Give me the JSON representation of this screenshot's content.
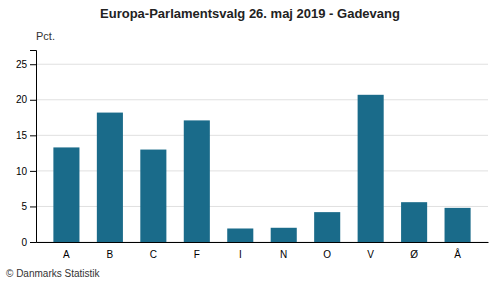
{
  "chart_data": {
    "type": "bar",
    "title": "Europa-Parlamentsvalg 26. maj 2019 - Gadevang",
    "categories": [
      "A",
      "B",
      "C",
      "F",
      "I",
      "N",
      "O",
      "V",
      "Ø",
      "Å"
    ],
    "values": [
      13.3,
      18.2,
      13.0,
      17.1,
      1.9,
      2.0,
      4.2,
      20.7,
      5.6,
      4.8
    ],
    "color": "#1a6b8a",
    "ylabel": "Pct.",
    "ylim": [
      0,
      27
    ],
    "yticks": [
      0,
      5,
      10,
      15,
      20,
      25
    ],
    "grid": true,
    "annotations": [
      "© Danmarks Statistik"
    ]
  }
}
